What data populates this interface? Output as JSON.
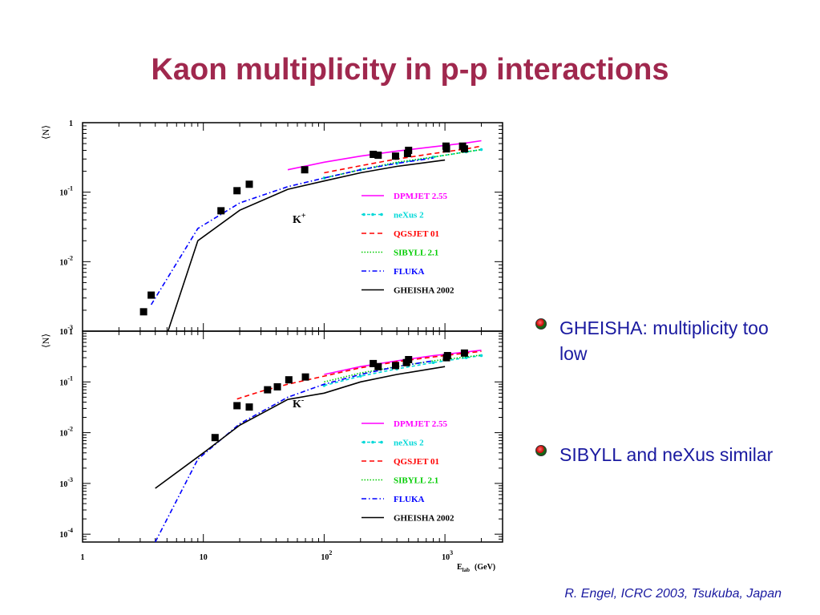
{
  "title": "Kaon multiplicity in p-p interactions",
  "bullets": [
    "GHEISHA: multiplicity too low",
    "SIBYLL and neXus similar"
  ],
  "footer": "R. Engel, ICRC 2003, Tsukuba, Japan",
  "chart_data": [
    {
      "type": "line",
      "particle": "K+",
      "particle_symbol": "K",
      "particle_charge": "+",
      "ylabel": "⟨N⟩",
      "xlabel": "",
      "xscale": "log",
      "yscale": "log",
      "xlim": [
        1,
        3000
      ],
      "ylim": [
        0.001,
        1
      ],
      "yticks": [
        {
          "base": "",
          "exp": "",
          "plain": "1",
          "value": 1
        },
        {
          "base": "10",
          "exp": "-1",
          "value": 0.1
        },
        {
          "base": "10",
          "exp": "-2",
          "value": 0.01
        },
        {
          "base": "10",
          "exp": "-3",
          "value": 0.001
        }
      ],
      "legend_position": "right-middle",
      "series": [
        {
          "name": "DPMJET 2.55",
          "color": "#ff00ff",
          "dash": "",
          "x": [
            50,
            100,
            200,
            400,
            800,
            1500,
            2000
          ],
          "y": [
            0.21,
            0.27,
            0.33,
            0.39,
            0.45,
            0.51,
            0.55
          ]
        },
        {
          "name": "neXus 2",
          "color": "#00d8d8",
          "dash": "4,3",
          "marker": "star",
          "x": [
            100,
            200,
            400,
            800,
            1500,
            2000
          ],
          "y": [
            0.16,
            0.21,
            0.26,
            0.32,
            0.38,
            0.41
          ]
        },
        {
          "name": "QGSJET 01",
          "color": "#ff0000",
          "dash": "6,4",
          "x": [
            100,
            200,
            400,
            800,
            1500,
            2000
          ],
          "y": [
            0.19,
            0.24,
            0.3,
            0.36,
            0.42,
            0.46
          ]
        },
        {
          "name": "SIBYLL 2.1",
          "color": "#00cc00",
          "dash": "1.5,2",
          "x": [
            100,
            200,
            400,
            800,
            1500,
            2000
          ],
          "y": [
            0.16,
            0.21,
            0.27,
            0.32,
            0.38,
            0.41
          ]
        },
        {
          "name": "FLUKA",
          "color": "#0000ff",
          "dash": "6,3,1.5,3",
          "x": [
            3.7,
            9,
            20,
            50,
            100,
            200,
            400,
            800
          ],
          "y": [
            0.0024,
            0.03,
            0.07,
            0.12,
            0.16,
            0.21,
            0.26,
            0.31
          ]
        },
        {
          "name": "GHEISHA 2002",
          "color": "#000000",
          "dash": "",
          "x": [
            5,
            9,
            20,
            50,
            100,
            200,
            400,
            1000
          ],
          "y": [
            0.0009,
            0.02,
            0.055,
            0.11,
            0.145,
            0.19,
            0.235,
            0.29
          ]
        }
      ],
      "data_points": {
        "x": [
          3.2,
          3.7,
          14,
          19,
          24,
          69,
          255,
          280,
          390,
          490,
          500,
          1020,
          1030,
          1400,
          1450
        ],
        "y": [
          0.0019,
          0.0033,
          0.054,
          0.105,
          0.13,
          0.21,
          0.35,
          0.34,
          0.33,
          0.36,
          0.4,
          0.46,
          0.42,
          0.46,
          0.42
        ]
      }
    },
    {
      "type": "line",
      "particle": "K-",
      "particle_symbol": "K",
      "particle_charge": "-",
      "ylabel": "⟨N⟩",
      "xlabel": "E_lab (GeV)",
      "xlabel_main": "E",
      "xlabel_sub": "lab",
      "xlabel_unit": "(GeV)",
      "xscale": "log",
      "yscale": "log",
      "xlim": [
        1,
        3000
      ],
      "ylim": [
        7e-05,
        1
      ],
      "xticks": [
        {
          "base": "1",
          "exp": "",
          "value": 1
        },
        {
          "base": "10",
          "exp": "",
          "value": 10
        },
        {
          "base": "10",
          "exp": "2",
          "value": 100
        },
        {
          "base": "10",
          "exp": "3",
          "value": 1000
        }
      ],
      "yticks": [
        {
          "base": "",
          "exp": "",
          "plain": "1",
          "value": 1
        },
        {
          "base": "10",
          "exp": "-1",
          "value": 0.1
        },
        {
          "base": "10",
          "exp": "-2",
          "value": 0.01
        },
        {
          "base": "10",
          "exp": "-3",
          "value": 0.001
        },
        {
          "base": "10",
          "exp": "-4",
          "value": 0.0001
        }
      ],
      "legend_position": "right-middle",
      "series": [
        {
          "name": "DPMJET 2.55",
          "color": "#ff00ff",
          "dash": "",
          "x": [
            100,
            200,
            400,
            800,
            1500,
            2000
          ],
          "y": [
            0.14,
            0.2,
            0.26,
            0.33,
            0.39,
            0.42
          ]
        },
        {
          "name": "neXus 2",
          "color": "#00d8d8",
          "dash": "4,3",
          "marker": "star",
          "x": [
            100,
            200,
            400,
            800,
            1500,
            2000
          ],
          "y": [
            0.085,
            0.13,
            0.18,
            0.24,
            0.3,
            0.33
          ]
        },
        {
          "name": "QGSJET 01",
          "color": "#ff0000",
          "dash": "6,4",
          "x": [
            19,
            30,
            50,
            100,
            200,
            400,
            800,
            1500,
            2000
          ],
          "y": [
            0.046,
            0.065,
            0.09,
            0.13,
            0.19,
            0.25,
            0.31,
            0.37,
            0.4
          ]
        },
        {
          "name": "SIBYLL 2.1",
          "color": "#00cc00",
          "dash": "1.5,2",
          "x": [
            100,
            200,
            400,
            800,
            1500,
            2000
          ],
          "y": [
            0.1,
            0.15,
            0.2,
            0.26,
            0.31,
            0.34
          ]
        },
        {
          "name": "FLUKA",
          "color": "#0000ff",
          "dash": "6,3,1.5,3",
          "x": [
            4,
            9,
            20,
            50,
            100,
            200,
            400,
            800
          ],
          "y": [
            7e-05,
            0.003,
            0.015,
            0.05,
            0.09,
            0.14,
            0.2,
            0.26
          ]
        },
        {
          "name": "GHEISHA 2002",
          "color": "#000000",
          "dash": "",
          "x": [
            4,
            10,
            20,
            50,
            100,
            200,
            400,
            1000
          ],
          "y": [
            0.0008,
            0.004,
            0.014,
            0.045,
            0.06,
            0.1,
            0.14,
            0.2
          ]
        }
      ],
      "data_points": {
        "x": [
          12.5,
          19,
          24,
          34,
          41,
          51,
          70,
          255,
          280,
          390,
          480,
          500,
          1030,
          1050,
          1450
        ],
        "y": [
          0.008,
          0.034,
          0.032,
          0.07,
          0.08,
          0.11,
          0.125,
          0.23,
          0.2,
          0.21,
          0.24,
          0.275,
          0.3,
          0.33,
          0.37
        ]
      }
    }
  ]
}
